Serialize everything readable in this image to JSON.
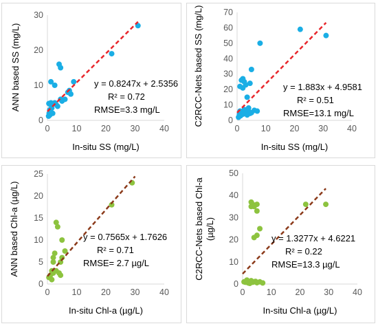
{
  "colors": {
    "ss_points": "#1aaee5",
    "chl_points": "#8dc33f",
    "ss_trend": "#e8262b",
    "chl_trend": "#8b3a1a",
    "axis": "#d9d9d9"
  },
  "chart_data": [
    {
      "type": "scatter",
      "xlabel": "In-situ SS (mg/L)",
      "ylabel": "ANN based SS (mg/L)",
      "xlim": [
        0,
        40
      ],
      "ylim": [
        0,
        30
      ],
      "xticks": [
        "0",
        "10",
        "20",
        "30",
        "40"
      ],
      "yticks": [
        "0",
        "10",
        "20",
        "30"
      ],
      "grid": false,
      "annotations": [
        "y = 0.8247x + 2.5356",
        "R² = 0.72",
        "RMSE=3.3 mg/L"
      ],
      "trendline": {
        "slope": 0.8247,
        "intercept": 2.5356,
        "x_range": [
          0,
          31
        ]
      },
      "points": [
        [
          0.4,
          1.2
        ],
        [
          0.6,
          2.0
        ],
        [
          0.8,
          3.0
        ],
        [
          1.0,
          4.5
        ],
        [
          1.2,
          5.0
        ],
        [
          0.5,
          4.8
        ],
        [
          1.5,
          3.5
        ],
        [
          2.0,
          4.8
        ],
        [
          2.5,
          5.0
        ],
        [
          3.0,
          4.5
        ],
        [
          3.5,
          4.0
        ],
        [
          1.0,
          2.5
        ],
        [
          0.8,
          1.5
        ],
        [
          1.8,
          2.0
        ],
        [
          1.2,
          11.0
        ],
        [
          2.5,
          10.0
        ],
        [
          4.0,
          16.0
        ],
        [
          4.5,
          15.0
        ],
        [
          4.5,
          6.0
        ],
        [
          5.0,
          5.5
        ],
        [
          6.0,
          6.0
        ],
        [
          7.0,
          8.0
        ],
        [
          7.5,
          8.5
        ],
        [
          8.0,
          7.5
        ],
        [
          9.0,
          11.0
        ],
        [
          22.0,
          19.0
        ],
        [
          31.0,
          27.0
        ]
      ]
    },
    {
      "type": "scatter",
      "xlabel": "In-situ SS (mg/L)",
      "ylabel": "C2RCC-Nets based SS (mg/L)",
      "xlim": [
        0,
        40
      ],
      "ylim": [
        0,
        70
      ],
      "xticks": [
        "0",
        "10",
        "20",
        "30",
        "40"
      ],
      "yticks": [
        "0",
        "10",
        "20",
        "30",
        "40",
        "50",
        "60",
        "70"
      ],
      "grid": false,
      "annotations": [
        "y = 1.883x + 4.9581",
        "R² = 0.51",
        "RMSE=13.1 mg/L"
      ],
      "trendline": {
        "slope": 1.883,
        "intercept": 4.9581,
        "x_range": [
          0,
          31
        ]
      },
      "points": [
        [
          0.5,
          2.0
        ],
        [
          0.8,
          4.0
        ],
        [
          1.0,
          6.0
        ],
        [
          1.2,
          3.0
        ],
        [
          1.5,
          5.5
        ],
        [
          2.0,
          4.0
        ],
        [
          2.5,
          7.0
        ],
        [
          3.0,
          5.0
        ],
        [
          3.5,
          3.5
        ],
        [
          4.0,
          6.0
        ],
        [
          4.5,
          4.5
        ],
        [
          5.0,
          5.0
        ],
        [
          6.0,
          6.5
        ],
        [
          7.0,
          6.0
        ],
        [
          1.0,
          22.0
        ],
        [
          1.5,
          26.0
        ],
        [
          2.0,
          27.0
        ],
        [
          2.5,
          25.0
        ],
        [
          3.0,
          23.0
        ],
        [
          2.0,
          21.0
        ],
        [
          3.5,
          15.0
        ],
        [
          4.0,
          8.0
        ],
        [
          4.5,
          24.0
        ],
        [
          5.0,
          33.0
        ],
        [
          8.0,
          50.0
        ],
        [
          22.0,
          59.0
        ],
        [
          31.0,
          55.0
        ]
      ]
    },
    {
      "type": "scatter",
      "xlabel": "In-situ Chl-a (µg/L)",
      "ylabel": "ANN based Chl-a (µg/L)",
      "xlim": [
        0,
        40
      ],
      "ylim": [
        0,
        25
      ],
      "xticks": [
        "0",
        "10",
        "20",
        "30",
        "40"
      ],
      "yticks": [
        "0",
        "5",
        "10",
        "15",
        "20",
        "25"
      ],
      "grid": false,
      "annotations": [
        "y = 0.7565x + 1.7626",
        "R² = 0.71",
        "RMSE= 2.7 µg/L"
      ],
      "trendline": {
        "slope": 0.7565,
        "intercept": 1.7626,
        "x_range": [
          0,
          30
        ]
      },
      "points": [
        [
          0.5,
          1.5
        ],
        [
          1.0,
          2.0
        ],
        [
          1.5,
          1.0
        ],
        [
          2.0,
          5.0
        ],
        [
          2.0,
          6.0
        ],
        [
          2.5,
          7.0
        ],
        [
          1.5,
          3.0
        ],
        [
          2.0,
          2.5
        ],
        [
          3.0,
          14.0
        ],
        [
          3.5,
          13.0
        ],
        [
          3.0,
          3.0
        ],
        [
          4.0,
          2.5
        ],
        [
          4.5,
          2.0
        ],
        [
          5.0,
          10.0
        ],
        [
          5.0,
          6.0
        ],
        [
          6.0,
          7.5
        ],
        [
          4.5,
          5.0
        ],
        [
          22.0,
          18.0
        ],
        [
          29.0,
          23.0
        ]
      ]
    },
    {
      "type": "scatter",
      "xlabel": "In-situ Chl-a (µg/L)",
      "ylabel": "C2RCC-Nets based Chl-a (µg/L)",
      "xlim": [
        0,
        40
      ],
      "ylim": [
        0,
        50
      ],
      "xticks": [
        "0",
        "10",
        "20",
        "30",
        "40"
      ],
      "yticks": [
        "0",
        "10",
        "20",
        "30",
        "40",
        "50"
      ],
      "grid": false,
      "annotations": [
        "y = 1.3277x + 4.6221",
        "R² = 0.22",
        "RMSE=13.3 µg/L"
      ],
      "trendline": {
        "slope": 1.3277,
        "intercept": 4.6221,
        "x_range": [
          0,
          29
        ]
      },
      "points": [
        [
          0.5,
          1.0
        ],
        [
          1.0,
          0.8
        ],
        [
          1.5,
          1.2
        ],
        [
          2.0,
          0.5
        ],
        [
          2.5,
          1.0
        ],
        [
          3.0,
          1.5
        ],
        [
          3.5,
          0.8
        ],
        [
          4.0,
          1.0
        ],
        [
          4.5,
          1.2
        ],
        [
          5.0,
          0.6
        ],
        [
          6.0,
          1.0
        ],
        [
          7.0,
          0.5
        ],
        [
          1.5,
          1.8
        ],
        [
          2.5,
          0.3
        ],
        [
          3.0,
          37.0
        ],
        [
          3.5,
          36.0
        ],
        [
          4.0,
          35.0
        ],
        [
          5.0,
          36.0
        ],
        [
          3.0,
          35.0
        ],
        [
          5.0,
          33.0
        ],
        [
          6.0,
          25.0
        ],
        [
          4.0,
          21.0
        ],
        [
          5.0,
          22.0
        ],
        [
          22.0,
          36.0
        ],
        [
          29.0,
          36.0
        ]
      ]
    }
  ]
}
